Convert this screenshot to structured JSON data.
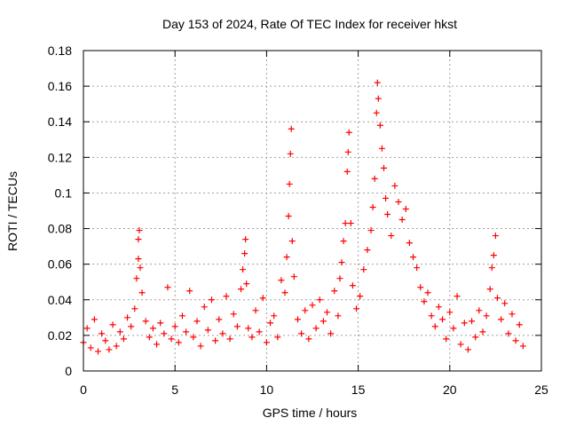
{
  "chart_data": {
    "type": "scatter",
    "title": "Day 153 of 2024, Rate Of TEC Index for receiver hkst",
    "xlabel": "GPS time / hours",
    "ylabel": "ROTI / TECUs",
    "xlim": [
      0,
      25
    ],
    "ylim": [
      0,
      0.18
    ],
    "xticks": [
      0,
      5,
      10,
      15,
      20,
      25
    ],
    "xtick_labels": [
      "0",
      "5",
      "10",
      "15",
      "20",
      "25"
    ],
    "yticks": [
      0,
      0.02,
      0.04,
      0.06,
      0.08,
      0.1,
      0.12,
      0.14,
      0.16,
      0.18
    ],
    "ytick_labels": [
      "0",
      "0.02",
      "0.04",
      "0.06",
      "0.08",
      "0.1",
      "0.12",
      "0.14",
      "0.16",
      "0.18"
    ],
    "grid": true,
    "marker": "+",
    "color": "#ff0000",
    "series": [
      {
        "name": "ROTI",
        "points": [
          [
            0.0,
            0.016
          ],
          [
            0.2,
            0.024
          ],
          [
            0.4,
            0.013
          ],
          [
            0.6,
            0.029
          ],
          [
            0.8,
            0.011
          ],
          [
            1.0,
            0.021
          ],
          [
            1.2,
            0.017
          ],
          [
            1.4,
            0.012
          ],
          [
            1.6,
            0.026
          ],
          [
            1.8,
            0.014
          ],
          [
            2.0,
            0.022
          ],
          [
            2.2,
            0.018
          ],
          [
            2.4,
            0.03
          ],
          [
            2.6,
            0.025
          ],
          [
            2.8,
            0.035
          ],
          [
            2.9,
            0.052
          ],
          [
            3.0,
            0.063
          ],
          [
            3.0,
            0.074
          ],
          [
            3.05,
            0.079
          ],
          [
            3.1,
            0.058
          ],
          [
            3.2,
            0.044
          ],
          [
            3.4,
            0.028
          ],
          [
            3.6,
            0.019
          ],
          [
            3.8,
            0.024
          ],
          [
            4.0,
            0.015
          ],
          [
            4.2,
            0.027
          ],
          [
            4.4,
            0.021
          ],
          [
            4.6,
            0.047
          ],
          [
            4.8,
            0.018
          ],
          [
            5.0,
            0.025
          ],
          [
            5.2,
            0.016
          ],
          [
            5.4,
            0.031
          ],
          [
            5.6,
            0.022
          ],
          [
            5.8,
            0.045
          ],
          [
            6.0,
            0.019
          ],
          [
            6.2,
            0.028
          ],
          [
            6.4,
            0.014
          ],
          [
            6.6,
            0.036
          ],
          [
            6.8,
            0.023
          ],
          [
            7.0,
            0.04
          ],
          [
            7.2,
            0.017
          ],
          [
            7.4,
            0.029
          ],
          [
            7.6,
            0.021
          ],
          [
            7.8,
            0.042
          ],
          [
            8.0,
            0.018
          ],
          [
            8.2,
            0.032
          ],
          [
            8.4,
            0.025
          ],
          [
            8.6,
            0.046
          ],
          [
            8.7,
            0.057
          ],
          [
            8.8,
            0.066
          ],
          [
            8.85,
            0.074
          ],
          [
            8.9,
            0.049
          ],
          [
            9.0,
            0.024
          ],
          [
            9.2,
            0.019
          ],
          [
            9.4,
            0.034
          ],
          [
            9.6,
            0.022
          ],
          [
            9.8,
            0.041
          ],
          [
            10.0,
            0.016
          ],
          [
            10.2,
            0.027
          ],
          [
            10.4,
            0.031
          ],
          [
            10.6,
            0.019
          ],
          [
            10.8,
            0.051
          ],
          [
            11.0,
            0.044
          ],
          [
            11.1,
            0.064
          ],
          [
            11.2,
            0.087
          ],
          [
            11.25,
            0.105
          ],
          [
            11.3,
            0.122
          ],
          [
            11.35,
            0.136
          ],
          [
            11.4,
            0.073
          ],
          [
            11.5,
            0.053
          ],
          [
            11.7,
            0.029
          ],
          [
            11.9,
            0.021
          ],
          [
            12.1,
            0.034
          ],
          [
            12.3,
            0.018
          ],
          [
            12.5,
            0.037
          ],
          [
            12.7,
            0.024
          ],
          [
            12.9,
            0.04
          ],
          [
            13.1,
            0.028
          ],
          [
            13.3,
            0.033
          ],
          [
            13.5,
            0.021
          ],
          [
            13.7,
            0.045
          ],
          [
            13.9,
            0.031
          ],
          [
            14.0,
            0.052
          ],
          [
            14.1,
            0.061
          ],
          [
            14.2,
            0.073
          ],
          [
            14.3,
            0.083
          ],
          [
            14.4,
            0.112
          ],
          [
            14.45,
            0.123
          ],
          [
            14.5,
            0.134
          ],
          [
            14.6,
            0.083
          ],
          [
            14.7,
            0.048
          ],
          [
            14.9,
            0.035
          ],
          [
            15.1,
            0.042
          ],
          [
            15.3,
            0.057
          ],
          [
            15.5,
            0.068
          ],
          [
            15.7,
            0.079
          ],
          [
            15.8,
            0.092
          ],
          [
            15.9,
            0.108
          ],
          [
            16.0,
            0.145
          ],
          [
            16.05,
            0.162
          ],
          [
            16.1,
            0.153
          ],
          [
            16.2,
            0.138
          ],
          [
            16.3,
            0.125
          ],
          [
            16.4,
            0.114
          ],
          [
            16.5,
            0.097
          ],
          [
            16.6,
            0.088
          ],
          [
            16.8,
            0.076
          ],
          [
            17.0,
            0.104
          ],
          [
            17.2,
            0.095
          ],
          [
            17.4,
            0.085
          ],
          [
            17.6,
            0.091
          ],
          [
            17.8,
            0.072
          ],
          [
            18.0,
            0.064
          ],
          [
            18.2,
            0.058
          ],
          [
            18.4,
            0.047
          ],
          [
            18.6,
            0.039
          ],
          [
            18.8,
            0.044
          ],
          [
            19.0,
            0.031
          ],
          [
            19.2,
            0.025
          ],
          [
            19.4,
            0.036
          ],
          [
            19.6,
            0.029
          ],
          [
            19.8,
            0.018
          ],
          [
            20.0,
            0.033
          ],
          [
            20.2,
            0.024
          ],
          [
            20.4,
            0.042
          ],
          [
            20.6,
            0.015
          ],
          [
            20.8,
            0.027
          ],
          [
            21.0,
            0.012
          ],
          [
            21.2,
            0.028
          ],
          [
            21.4,
            0.019
          ],
          [
            21.6,
            0.034
          ],
          [
            21.8,
            0.022
          ],
          [
            22.0,
            0.031
          ],
          [
            22.2,
            0.046
          ],
          [
            22.3,
            0.058
          ],
          [
            22.4,
            0.065
          ],
          [
            22.5,
            0.076
          ],
          [
            22.6,
            0.041
          ],
          [
            22.8,
            0.029
          ],
          [
            23.0,
            0.038
          ],
          [
            23.2,
            0.021
          ],
          [
            23.4,
            0.032
          ],
          [
            23.6,
            0.017
          ],
          [
            23.8,
            0.026
          ],
          [
            24.0,
            0.014
          ]
        ]
      }
    ]
  }
}
